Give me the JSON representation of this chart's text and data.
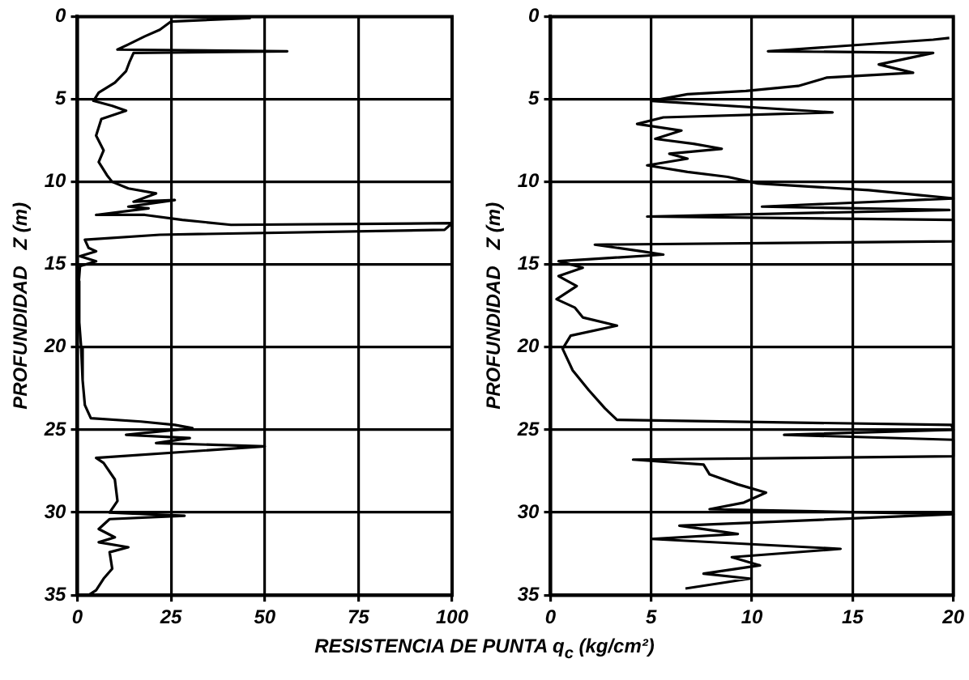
{
  "chart_data": [
    {
      "type": "line",
      "xlabel": "RESISTENCIA DE PUNTA q$_{c}$ (kg/cm²)",
      "ylabel": "PROFUNDIDAD   Z (m)",
      "xlim": [
        0,
        100
      ],
      "xticks": [
        0,
        25,
        50,
        75,
        100
      ],
      "ylim": [
        35,
        0
      ],
      "yticks": [
        0,
        5,
        10,
        15,
        20,
        25,
        30,
        35
      ],
      "grid": true,
      "legend": false,
      "series": [
        {
          "color": "#000000",
          "x": [
            26,
            46,
            25,
            22,
            18,
            13.5,
            10.7,
            56,
            15,
            14,
            13,
            10,
            5.7,
            4.3,
            9.3,
            13,
            6.4,
            5,
            7,
            5.7,
            7.9,
            9.3,
            13.6,
            21,
            15,
            26,
            13.6,
            19,
            5,
            18,
            28,
            41,
            100,
            98,
            22,
            2,
            3,
            5,
            0.7,
            5,
            0.7,
            0.4,
            0.5,
            1,
            1.4,
            2,
            3.6,
            17,
            26,
            30.7,
            13,
            30,
            21,
            50,
            5,
            7,
            10,
            10.7,
            8.6,
            28.6,
            8.6,
            5.7,
            10,
            5.7,
            13.6,
            8.6,
            9.3,
            7,
            5,
            3
          ],
          "values": [
            0,
            0.1,
            0.3,
            0.8,
            1.2,
            1.7,
            2,
            2.1,
            2.2,
            2.7,
            3.3,
            4,
            4.6,
            5.1,
            5.4,
            5.7,
            6.2,
            7.2,
            8.1,
            8.8,
            9.6,
            10,
            10.4,
            10.7,
            11.2,
            11.1,
            11.5,
            11.6,
            12,
            12,
            12.3,
            12.6,
            12.5,
            12.9,
            13.2,
            13.5,
            14,
            14.2,
            14.5,
            14.8,
            15.1,
            16,
            18.5,
            20,
            22,
            23.5,
            24.3,
            24.5,
            24.7,
            24.9,
            25.3,
            25.5,
            25.8,
            26,
            26.7,
            27,
            28,
            29.3,
            30,
            30.2,
            30.4,
            31,
            31.5,
            31.8,
            32.1,
            32.4,
            33.4,
            34,
            34.7,
            35
          ]
        }
      ]
    },
    {
      "type": "line",
      "ylabel": "PROFUNDIDAD   Z (m)",
      "xlim": [
        0,
        20
      ],
      "xticks": [
        0,
        5,
        10,
        15,
        20
      ],
      "ylim": [
        35,
        0
      ],
      "yticks": [
        0,
        5,
        10,
        15,
        20,
        25,
        30,
        35
      ],
      "grid": true,
      "legend": false,
      "series": [
        {
          "color": "#000000",
          "x": [
            19.8,
            19,
            10.8,
            19,
            16.3,
            18,
            13.7,
            12.3,
            9.7,
            6.8,
            5,
            14,
            5.6,
            4.3,
            6.5,
            5.2,
            7.1,
            8.5,
            5.9,
            6.8,
            4.8,
            6.8,
            8.8,
            10.3,
            15.8,
            20,
            10.5,
            19.8,
            4.8,
            20,
            20,
            2.2,
            4.5,
            5.6,
            0.4,
            1.6,
            0.4,
            1.3,
            0.3,
            1.2,
            1.6,
            3.3,
            1,
            0.6,
            1.1,
            1.9,
            2.7,
            3.3,
            19.9,
            20,
            11.6,
            20,
            20,
            4.1,
            7.6,
            7.9,
            9.3,
            10.7,
            9.6,
            7.9,
            20,
            6.4,
            9.3,
            5,
            14.4,
            9,
            10.4,
            7.6,
            9.9,
            6.7
          ],
          "values": [
            1.3,
            1.4,
            2.1,
            2.2,
            2.9,
            3.4,
            3.7,
            4.2,
            4.5,
            4.7,
            5.1,
            5.8,
            6.1,
            6.5,
            6.9,
            7.4,
            7.7,
            8,
            8.3,
            8.6,
            9,
            9.4,
            9.7,
            10.1,
            10.5,
            11,
            11.5,
            11.7,
            12.1,
            12.3,
            13.6,
            13.8,
            14.2,
            14.4,
            14.8,
            15.2,
            15.7,
            16.3,
            17.1,
            17.6,
            18.2,
            18.7,
            19.3,
            20.1,
            21.4,
            22.6,
            23.7,
            24.4,
            24.7,
            25,
            25.3,
            25.6,
            26.6,
            26.8,
            27.1,
            27.7,
            28.3,
            28.8,
            29.4,
            29.8,
            30.1,
            30.8,
            31.3,
            31.6,
            32.2,
            32.7,
            33.2,
            33.7,
            34,
            34.6
          ]
        }
      ]
    }
  ]
}
